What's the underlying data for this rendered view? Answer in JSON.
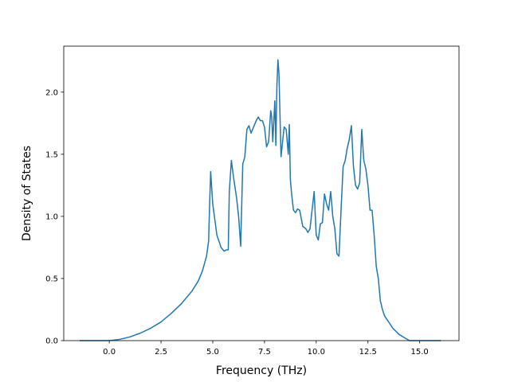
{
  "chart_data": {
    "type": "line",
    "title": "",
    "xlabel": "Frequency (THz)",
    "ylabel": "Density of States",
    "xlim": [
      -2.2,
      16.9
    ],
    "ylim": [
      0.0,
      2.37
    ],
    "grid": false,
    "legend": "none",
    "line_color": "#1f77b4",
    "x_ticks": [
      0.0,
      2.5,
      5.0,
      7.5,
      10.0,
      12.5,
      15.0
    ],
    "x_tick_labels": [
      "0.0",
      "2.5",
      "5.0",
      "7.5",
      "10.0",
      "12.5",
      "15.0"
    ],
    "y_ticks": [
      0.0,
      0.5,
      1.0,
      1.5,
      2.0
    ],
    "y_tick_labels": [
      "0.0",
      "0.5",
      "1.0",
      "1.5",
      "2.0"
    ],
    "series": [
      {
        "x": [
          -1.4,
          -1.0,
          -0.5,
          0.0,
          0.5,
          1.0,
          1.5,
          2.0,
          2.5,
          3.0,
          3.5,
          4.0,
          4.3,
          4.5,
          4.6,
          4.7,
          4.8,
          4.85,
          4.9,
          5.0,
          5.2,
          5.4,
          5.55,
          5.65,
          5.75,
          5.8,
          5.9,
          6.0,
          6.15,
          6.25,
          6.35,
          6.45,
          6.55,
          6.65,
          6.75,
          6.85,
          7.0,
          7.1,
          7.2,
          7.3,
          7.4,
          7.5,
          7.6,
          7.7,
          7.8,
          7.85,
          7.9,
          8.0,
          8.05,
          8.1,
          8.15,
          8.2,
          8.3,
          8.45,
          8.55,
          8.65,
          8.7,
          8.75,
          8.8,
          8.9,
          9.0,
          9.1,
          9.2,
          9.35,
          9.5,
          9.6,
          9.7,
          9.8,
          9.9,
          10.0,
          10.1,
          10.2,
          10.3,
          10.4,
          10.5,
          10.6,
          10.7,
          10.8,
          10.9,
          11.0,
          11.1,
          11.2,
          11.3,
          11.4,
          11.5,
          11.6,
          11.7,
          11.8,
          11.9,
          12.0,
          12.1,
          12.2,
          12.3,
          12.4,
          12.5,
          12.6,
          12.7,
          12.8,
          12.9,
          13.0,
          13.1,
          13.2,
          13.3,
          13.5,
          13.7,
          14.0,
          14.3,
          14.5,
          14.6,
          14.7,
          15.0,
          15.5,
          16.0
        ],
        "y": [
          0.0,
          0.0,
          0.0,
          0.0,
          0.01,
          0.03,
          0.06,
          0.1,
          0.15,
          0.22,
          0.3,
          0.4,
          0.48,
          0.56,
          0.62,
          0.68,
          0.8,
          1.1,
          1.36,
          1.1,
          0.85,
          0.75,
          0.72,
          0.73,
          0.73,
          1.2,
          1.45,
          1.32,
          1.15,
          1.0,
          0.76,
          1.42,
          1.48,
          1.7,
          1.73,
          1.67,
          1.73,
          1.77,
          1.8,
          1.77,
          1.77,
          1.72,
          1.56,
          1.6,
          1.85,
          1.8,
          1.6,
          1.93,
          1.57,
          2.05,
          2.26,
          2.15,
          1.48,
          1.72,
          1.7,
          1.5,
          1.74,
          1.3,
          1.2,
          1.05,
          1.03,
          1.06,
          1.05,
          0.92,
          0.9,
          0.87,
          0.9,
          1.05,
          1.2,
          0.85,
          0.81,
          0.94,
          0.95,
          1.18,
          1.1,
          1.05,
          1.2,
          1.0,
          0.9,
          0.7,
          0.68,
          1.05,
          1.4,
          1.45,
          1.55,
          1.62,
          1.73,
          1.4,
          1.25,
          1.22,
          1.27,
          1.7,
          1.45,
          1.38,
          1.25,
          1.05,
          1.05,
          0.85,
          0.6,
          0.5,
          0.32,
          0.25,
          0.2,
          0.15,
          0.1,
          0.05,
          0.02,
          0.0,
          0.0,
          0.0,
          0.0,
          0.0,
          0.0
        ]
      }
    ]
  }
}
